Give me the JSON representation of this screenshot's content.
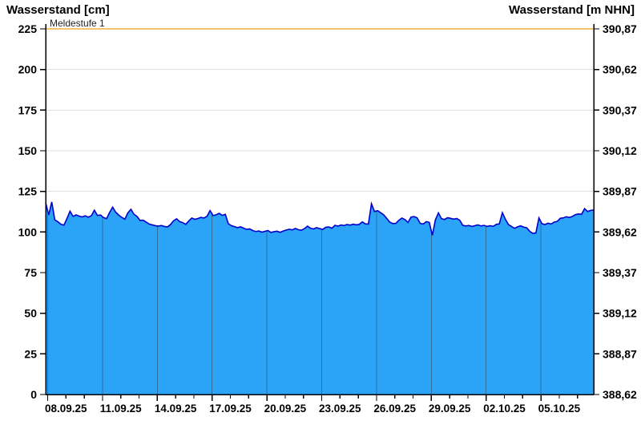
{
  "header": {
    "left_title": "Wasserstand [cm]",
    "right_title": "Wasserstand [m NHN]"
  },
  "chart_data": {
    "type": "area",
    "title": "Wasserstand",
    "xlabel": "",
    "ylabel_left": "Wasserstand [cm]",
    "ylabel_right": "Wasserstand [m NHN]",
    "x_axis": {
      "tick_labels": [
        "08.09.25",
        "11.09.25",
        "14.09.25",
        "17.09.25",
        "20.09.25",
        "23.09.25",
        "26.09.25",
        "29.09.25",
        "02.10.25",
        "05.10.25"
      ],
      "span_days": 30,
      "minor_tick_every_days": 1,
      "major_tick_every_days": 3
    },
    "y_left": {
      "ticks": [
        0,
        25,
        50,
        75,
        100,
        125,
        150,
        175,
        200,
        225
      ],
      "range": [
        0,
        225
      ],
      "unit": "cm"
    },
    "y_right": {
      "tick_labels": [
        "388,62",
        "388,87",
        "389,12",
        "389,37",
        "389,62",
        "389,87",
        "390,12",
        "390,37",
        "390,62",
        "390,87"
      ],
      "unit": "m NHN"
    },
    "threshold": {
      "label": "Meldestufe 1",
      "value_cm": 225,
      "color": "#F0AF3C"
    },
    "grid": {
      "horizontal": true,
      "horizontal_color": "#E0E0E0",
      "day_separators": true,
      "day_separator_color": "#2F6E9B"
    },
    "series": [
      {
        "name": "Wasserstand",
        "unit": "cm",
        "fill_color": "#2BA3F7",
        "line_color": "#0000CC",
        "values_cm": [
          118,
          110.5,
          118.5,
          107.5,
          106.3,
          104.8,
          104.2,
          108.3,
          112.8,
          109.6,
          110.5,
          109.8,
          109.3,
          110,
          109.1,
          110,
          113.4,
          110.2,
          110.5,
          108.9,
          108.2,
          112,
          115.3,
          112.2,
          110.4,
          109,
          107.9,
          111.8,
          114,
          110.9,
          109.6,
          107.1,
          107.3,
          106.1,
          104.9,
          104.4,
          103.9,
          103.6,
          104,
          103.4,
          103.1,
          104.6,
          106.9,
          108.1,
          106.4,
          105.8,
          104.7,
          106.8,
          108.6,
          107.8,
          108.3,
          109,
          108.6,
          109.7,
          113.2,
          110.1,
          110.6,
          111.5,
          110.2,
          110.9,
          105.1,
          103.9,
          103.3,
          102.7,
          103.2,
          102.4,
          101.6,
          101.9,
          100.9,
          100.3,
          100.6,
          99.9,
          100.4,
          100.9,
          99.7,
          100.2,
          100.5,
          99.8,
          100.6,
          101.2,
          101.7,
          101.3,
          102.2,
          101.4,
          101.1,
          102.1,
          103.6,
          102.3,
          101.9,
          102.7,
          102.1,
          101.6,
          102.9,
          103.1,
          102.3,
          104.1,
          103.6,
          104.3,
          104,
          104.6,
          104.2,
          104.8,
          104.4,
          104.7,
          106.2,
          105,
          104.9,
          117.4,
          112.6,
          113.1,
          111.9,
          110.6,
          108.4,
          106.1,
          105.2,
          105.3,
          107.2,
          108.6,
          107.6,
          105.9,
          109.2,
          109.5,
          108.7,
          105.3,
          104.9,
          106.4,
          105.9,
          98,
          107.5,
          111.8,
          108.2,
          107.7,
          108.8,
          108.4,
          107.9,
          108.3,
          107.2,
          104.1,
          103.7,
          104,
          103.4,
          103.9,
          104.4,
          103.7,
          104.1,
          103.4,
          103.9,
          103.5,
          104.7,
          105,
          111.9,
          107.8,
          104.6,
          103.4,
          102.3,
          103.2,
          103.8,
          103,
          102.6,
          100.4,
          99.1,
          99.4,
          108.7,
          105.1,
          104.6,
          105.4,
          104.9,
          106.1,
          106.5,
          108.4,
          108.7,
          109.4,
          108.9,
          109.6,
          110.7,
          111.1,
          110.9,
          114.4,
          112.6,
          113.3,
          113.5
        ]
      }
    ]
  }
}
